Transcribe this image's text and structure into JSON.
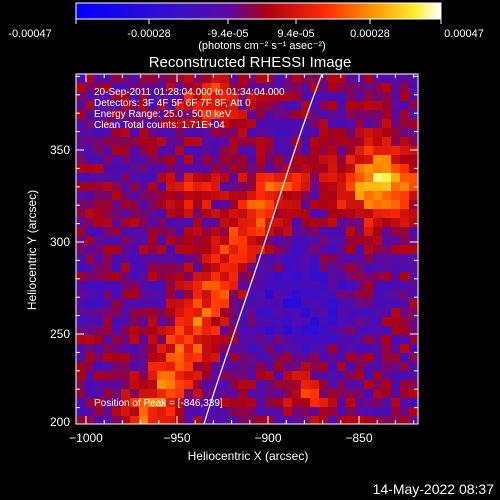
{
  "colorbar": {
    "tick_labels": [
      "-0.00047",
      "-0.00028",
      "-9.4e-05",
      "9.4e-05",
      "0.00028",
      "0.00047"
    ],
    "units": "(photons cm⁻² s⁻¹ asec⁻²)",
    "colormap": "blue-purple-red-orange-yellow-white"
  },
  "image": {
    "title": "Reconstructed RHESSI Image",
    "annotations": [
      "20-Sep-2011 01:28:04.000 to 01:34:04.000",
      "Detectors: 3F 4F 5F 6F 7F 8F, Att 0",
      "Energy Range: 25.0 - 50.0 keV",
      "Clean     Total counts: 1.71E+04"
    ],
    "peak_label": "Position of Peak = [-846,339]",
    "xlabel": "Heliocentric X (arcsec)",
    "ylabel": "Heliocentric Y (arcsec)",
    "x_ticks": [
      "−1000",
      "−950",
      "−900",
      "−850"
    ],
    "y_ticks": [
      "350",
      "300",
      "250",
      "200"
    ],
    "x_range": [
      -1002,
      -815
    ],
    "y_range": [
      198,
      390
    ],
    "limb": "white curve"
  },
  "footer": {
    "timestamp": "14-May-2022 08:37"
  }
}
